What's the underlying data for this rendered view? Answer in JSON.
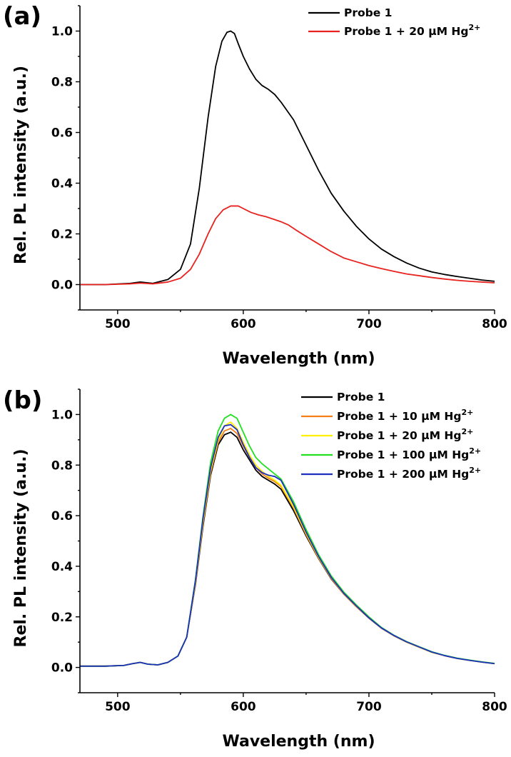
{
  "chart_data": [
    {
      "panel": "(a)",
      "type": "line",
      "xlabel": "Wavelength (nm)",
      "ylabel": "Rel. PL intensity (a.u.)",
      "xlim": [
        470,
        800
      ],
      "ylim": [
        -0.1,
        1.1
      ],
      "xticks": [
        500,
        600,
        700,
        800
      ],
      "yticks": [
        0.0,
        0.2,
        0.4,
        0.6,
        0.8,
        1.0
      ],
      "xtick_labels": [
        "500",
        "600",
        "700",
        "800"
      ],
      "ytick_labels": [
        "0.0",
        "0.2",
        "0.4",
        "0.6",
        "0.8",
        "1.0"
      ],
      "legend_position": "top-right",
      "grid": false,
      "series": [
        {
          "name": "Probe 1",
          "color": "#000000",
          "x": [
            470,
            490,
            510,
            518,
            528,
            540,
            550,
            558,
            565,
            572,
            578,
            583,
            587,
            590,
            593,
            596,
            600,
            605,
            610,
            615,
            620,
            625,
            630,
            640,
            650,
            660,
            670,
            680,
            690,
            700,
            710,
            720,
            730,
            740,
            750,
            760,
            770,
            780,
            790,
            800
          ],
          "y": [
            0.0,
            0.0,
            0.005,
            0.01,
            0.005,
            0.02,
            0.06,
            0.16,
            0.38,
            0.66,
            0.86,
            0.96,
            0.995,
            1.0,
            0.99,
            0.95,
            0.9,
            0.85,
            0.81,
            0.785,
            0.77,
            0.75,
            0.72,
            0.65,
            0.55,
            0.45,
            0.36,
            0.29,
            0.23,
            0.18,
            0.14,
            0.11,
            0.085,
            0.065,
            0.05,
            0.04,
            0.032,
            0.025,
            0.018,
            0.013
          ]
        },
        {
          "name": "Probe 1 + 20 μM Hg",
          "name_sup": "2+",
          "color": "#e8231f",
          "x": [
            470,
            490,
            510,
            518,
            528,
            540,
            550,
            558,
            565,
            572,
            578,
            584,
            590,
            596,
            600,
            606,
            612,
            618,
            624,
            630,
            636,
            642,
            650,
            660,
            670,
            680,
            690,
            700,
            710,
            720,
            730,
            740,
            750,
            760,
            770,
            780,
            790,
            800
          ],
          "y": [
            0.0,
            0.0,
            0.003,
            0.006,
            0.003,
            0.01,
            0.025,
            0.06,
            0.12,
            0.2,
            0.26,
            0.295,
            0.31,
            0.31,
            0.3,
            0.285,
            0.275,
            0.268,
            0.258,
            0.248,
            0.235,
            0.215,
            0.19,
            0.16,
            0.13,
            0.105,
            0.09,
            0.075,
            0.063,
            0.052,
            0.042,
            0.035,
            0.028,
            0.022,
            0.017,
            0.013,
            0.01,
            0.007
          ]
        }
      ]
    },
    {
      "panel": "(b)",
      "type": "line",
      "xlabel": "Wavelength (nm)",
      "ylabel": "Rel. PL intensity (a.u.)",
      "xlim": [
        470,
        800
      ],
      "ylim": [
        -0.1,
        1.1
      ],
      "xticks": [
        500,
        600,
        700,
        800
      ],
      "yticks": [
        0.0,
        0.2,
        0.4,
        0.6,
        0.8,
        1.0
      ],
      "xtick_labels": [
        "500",
        "600",
        "700",
        "800"
      ],
      "ytick_labels": [
        "0.0",
        "0.2",
        "0.4",
        "0.6",
        "0.8",
        "1.0"
      ],
      "legend_position": "top-right",
      "grid": false,
      "x": [
        470,
        490,
        505,
        512,
        518,
        524,
        532,
        540,
        548,
        555,
        562,
        568,
        574,
        580,
        585,
        590,
        595,
        600,
        605,
        610,
        615,
        620,
        625,
        630,
        640,
        650,
        660,
        670,
        680,
        690,
        700,
        710,
        720,
        730,
        740,
        750,
        760,
        770,
        780,
        790,
        800
      ],
      "series": [
        {
          "name": "Probe 1",
          "color": "#000000",
          "y": [
            0.005,
            0.005,
            0.008,
            0.015,
            0.02,
            0.013,
            0.01,
            0.02,
            0.045,
            0.12,
            0.33,
            0.56,
            0.76,
            0.88,
            0.92,
            0.93,
            0.91,
            0.86,
            0.82,
            0.78,
            0.755,
            0.74,
            0.725,
            0.705,
            0.62,
            0.52,
            0.43,
            0.35,
            0.29,
            0.24,
            0.195,
            0.155,
            0.125,
            0.1,
            0.08,
            0.06,
            0.047,
            0.036,
            0.028,
            0.021,
            0.015
          ]
        },
        {
          "name": "Probe 1 + 10 μM Hg",
          "name_sup": "2+",
          "color": "#f57f17",
          "y": [
            0.005,
            0.005,
            0.008,
            0.015,
            0.02,
            0.013,
            0.01,
            0.02,
            0.045,
            0.12,
            0.335,
            0.57,
            0.77,
            0.89,
            0.935,
            0.945,
            0.925,
            0.875,
            0.83,
            0.79,
            0.765,
            0.748,
            0.735,
            0.715,
            0.63,
            0.525,
            0.432,
            0.352,
            0.29,
            0.24,
            0.195,
            0.155,
            0.125,
            0.1,
            0.08,
            0.06,
            0.047,
            0.036,
            0.028,
            0.021,
            0.015
          ]
        },
        {
          "name": "Probe 1 + 20 μM Hg",
          "name_sup": "2+",
          "color": "#ffee00",
          "y": [
            0.005,
            0.005,
            0.008,
            0.015,
            0.02,
            0.013,
            0.01,
            0.02,
            0.045,
            0.12,
            0.34,
            0.58,
            0.78,
            0.9,
            0.955,
            0.97,
            0.945,
            0.89,
            0.84,
            0.8,
            0.775,
            0.755,
            0.74,
            0.72,
            0.635,
            0.53,
            0.435,
            0.355,
            0.292,
            0.242,
            0.197,
            0.156,
            0.126,
            0.1,
            0.08,
            0.06,
            0.047,
            0.036,
            0.028,
            0.021,
            0.015
          ]
        },
        {
          "name": "Probe 1 + 100 μM Hg",
          "name_sup": "2+",
          "color": "#22e01f",
          "y": [
            0.005,
            0.005,
            0.008,
            0.015,
            0.02,
            0.013,
            0.01,
            0.02,
            0.045,
            0.12,
            0.35,
            0.6,
            0.81,
            0.935,
            0.985,
            1.0,
            0.985,
            0.93,
            0.875,
            0.83,
            0.805,
            0.785,
            0.765,
            0.745,
            0.655,
            0.545,
            0.445,
            0.362,
            0.298,
            0.247,
            0.2,
            0.158,
            0.127,
            0.102,
            0.082,
            0.062,
            0.048,
            0.037,
            0.029,
            0.022,
            0.016
          ]
        },
        {
          "name": "Probe 1 + 200 μM Hg",
          "name_sup": "2+",
          "color": "#1c2fbf",
          "y": [
            0.005,
            0.005,
            0.008,
            0.015,
            0.02,
            0.013,
            0.01,
            0.02,
            0.045,
            0.12,
            0.345,
            0.59,
            0.79,
            0.91,
            0.955,
            0.96,
            0.94,
            0.88,
            0.83,
            0.79,
            0.77,
            0.76,
            0.755,
            0.74,
            0.645,
            0.535,
            0.438,
            0.356,
            0.293,
            0.243,
            0.196,
            0.156,
            0.126,
            0.101,
            0.081,
            0.061,
            0.047,
            0.036,
            0.028,
            0.021,
            0.015
          ]
        }
      ]
    }
  ]
}
